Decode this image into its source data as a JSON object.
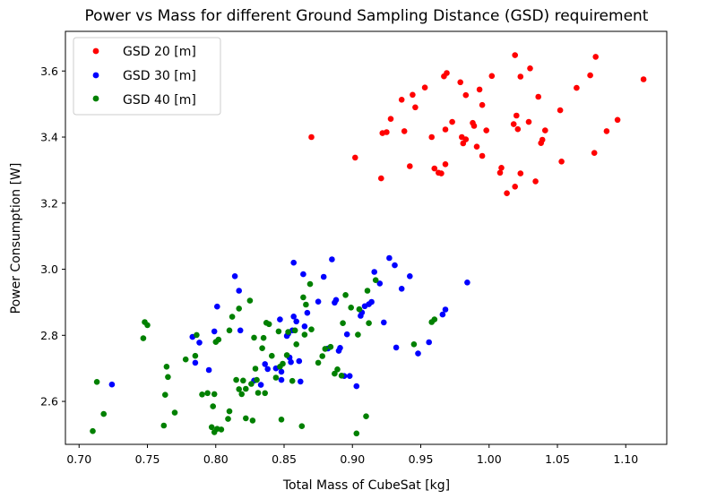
{
  "chart_data": {
    "type": "scatter",
    "title": "Power vs Mass for different Ground Sampling Distance (GSD) requirement",
    "xlabel": "Total Mass of CubeSat [kg]",
    "ylabel": "Power Consumption [W]",
    "xlim": [
      0.69,
      1.13
    ],
    "ylim": [
      2.47,
      3.72
    ],
    "xticks": [
      "0.70",
      "0.75",
      "0.80",
      "0.85",
      "0.90",
      "0.95",
      "1.00",
      "1.05",
      "1.10"
    ],
    "yticks": [
      "2.6",
      "2.8",
      "3.0",
      "3.2",
      "3.4",
      "3.6"
    ],
    "grid": false,
    "legend_position": "top-left",
    "series": [
      {
        "name": "GSD 20 [m]",
        "color": "#ff0000",
        "points": [
          [
            0.87,
            3.4
          ],
          [
            0.902,
            3.338
          ],
          [
            0.921,
            3.275
          ],
          [
            0.922,
            3.412
          ],
          [
            0.925,
            3.415
          ],
          [
            0.928,
            3.455
          ],
          [
            0.936,
            3.513
          ],
          [
            0.938,
            3.418
          ],
          [
            0.942,
            3.312
          ],
          [
            0.944,
            3.528
          ],
          [
            0.946,
            3.49
          ],
          [
            0.953,
            3.55
          ],
          [
            0.958,
            3.4
          ],
          [
            0.96,
            3.305
          ],
          [
            0.963,
            3.292
          ],
          [
            0.965,
            3.29
          ],
          [
            0.967,
            3.584
          ],
          [
            0.968,
            3.423
          ],
          [
            0.968,
            3.318
          ],
          [
            0.969,
            3.594
          ],
          [
            0.973,
            3.446
          ],
          [
            0.979,
            3.566
          ],
          [
            0.98,
            3.4
          ],
          [
            0.981,
            3.381
          ],
          [
            0.983,
            3.527
          ],
          [
            0.983,
            3.393
          ],
          [
            0.988,
            3.443
          ],
          [
            0.989,
            3.434
          ],
          [
            0.991,
            3.371
          ],
          [
            0.993,
            3.544
          ],
          [
            0.995,
            3.343
          ],
          [
            0.995,
            3.497
          ],
          [
            0.998,
            3.42
          ],
          [
            1.002,
            3.585
          ],
          [
            1.008,
            3.292
          ],
          [
            1.009,
            3.307
          ],
          [
            1.013,
            3.23
          ],
          [
            1.018,
            3.439
          ],
          [
            1.019,
            3.648
          ],
          [
            1.019,
            3.25
          ],
          [
            1.02,
            3.465
          ],
          [
            1.021,
            3.424
          ],
          [
            1.023,
            3.583
          ],
          [
            1.023,
            3.29
          ],
          [
            1.029,
            3.446
          ],
          [
            1.03,
            3.608
          ],
          [
            1.034,
            3.266
          ],
          [
            1.036,
            3.522
          ],
          [
            1.038,
            3.382
          ],
          [
            1.039,
            3.392
          ],
          [
            1.041,
            3.42
          ],
          [
            1.052,
            3.481
          ],
          [
            1.053,
            3.326
          ],
          [
            1.064,
            3.549
          ],
          [
            1.074,
            3.587
          ],
          [
            1.077,
            3.352
          ],
          [
            1.078,
            3.643
          ],
          [
            1.086,
            3.418
          ],
          [
            1.094,
            3.452
          ],
          [
            1.113,
            3.575
          ]
        ]
      },
      {
        "name": "GSD 30 [m]",
        "color": "#0000ff",
        "points": [
          [
            0.724,
            2.651
          ],
          [
            0.783,
            2.795
          ],
          [
            0.785,
            2.717
          ],
          [
            0.788,
            2.778
          ],
          [
            0.795,
            2.695
          ],
          [
            0.799,
            2.812
          ],
          [
            0.801,
            2.887
          ],
          [
            0.814,
            2.979
          ],
          [
            0.817,
            2.935
          ],
          [
            0.818,
            2.815
          ],
          [
            0.828,
            2.663
          ],
          [
            0.833,
            2.65
          ],
          [
            0.836,
            2.713
          ],
          [
            0.838,
            2.698
          ],
          [
            0.844,
            2.7
          ],
          [
            0.847,
            2.848
          ],
          [
            0.848,
            2.665
          ],
          [
            0.848,
            2.69
          ],
          [
            0.852,
            2.798
          ],
          [
            0.853,
            2.805
          ],
          [
            0.854,
            2.733
          ],
          [
            0.855,
            2.719
          ],
          [
            0.856,
            2.815
          ],
          [
            0.857,
            3.02
          ],
          [
            0.857,
            2.857
          ],
          [
            0.859,
            2.842
          ],
          [
            0.861,
            2.722
          ],
          [
            0.862,
            2.66
          ],
          [
            0.864,
            2.985
          ],
          [
            0.865,
            2.827
          ],
          [
            0.867,
            2.868
          ],
          [
            0.875,
            2.902
          ],
          [
            0.879,
            2.977
          ],
          [
            0.882,
            2.76
          ],
          [
            0.885,
            3.03
          ],
          [
            0.887,
            2.899
          ],
          [
            0.888,
            2.907
          ],
          [
            0.89,
            2.753
          ],
          [
            0.891,
            2.762
          ],
          [
            0.894,
            2.677
          ],
          [
            0.896,
            2.803
          ],
          [
            0.898,
            2.677
          ],
          [
            0.903,
            2.646
          ],
          [
            0.906,
            2.859
          ],
          [
            0.907,
            2.869
          ],
          [
            0.909,
            2.888
          ],
          [
            0.912,
            2.894
          ],
          [
            0.914,
            2.901
          ],
          [
            0.916,
            2.992
          ],
          [
            0.92,
            2.957
          ],
          [
            0.923,
            2.839
          ],
          [
            0.927,
            3.034
          ],
          [
            0.931,
            3.012
          ],
          [
            0.932,
            2.763
          ],
          [
            0.936,
            2.941
          ],
          [
            0.942,
            2.979
          ],
          [
            0.948,
            2.745
          ],
          [
            0.956,
            2.779
          ],
          [
            0.966,
            2.863
          ],
          [
            0.968,
            2.878
          ],
          [
            0.984,
            2.96
          ]
        ]
      },
      {
        "name": "GSD 40 [m]",
        "color": "#008000",
        "points": [
          [
            0.71,
            2.51
          ],
          [
            0.713,
            2.659
          ],
          [
            0.718,
            2.562
          ],
          [
            0.747,
            2.791
          ],
          [
            0.748,
            2.84
          ],
          [
            0.75,
            2.831
          ],
          [
            0.762,
            2.527
          ],
          [
            0.763,
            2.62
          ],
          [
            0.764,
            2.705
          ],
          [
            0.765,
            2.674
          ],
          [
            0.77,
            2.566
          ],
          [
            0.778,
            2.727
          ],
          [
            0.785,
            2.738
          ],
          [
            0.786,
            2.801
          ],
          [
            0.79,
            2.621
          ],
          [
            0.794,
            2.625
          ],
          [
            0.797,
            2.522
          ],
          [
            0.798,
            2.585
          ],
          [
            0.799,
            2.507
          ],
          [
            0.799,
            2.622
          ],
          [
            0.8,
            2.78
          ],
          [
            0.801,
            2.517
          ],
          [
            0.802,
            2.787
          ],
          [
            0.804,
            2.515
          ],
          [
            0.809,
            2.547
          ],
          [
            0.81,
            2.57
          ],
          [
            0.81,
            2.815
          ],
          [
            0.812,
            2.856
          ],
          [
            0.815,
            2.665
          ],
          [
            0.817,
            2.881
          ],
          [
            0.817,
            2.637
          ],
          [
            0.819,
            2.622
          ],
          [
            0.82,
            2.663
          ],
          [
            0.822,
            2.638
          ],
          [
            0.822,
            2.549
          ],
          [
            0.825,
            2.905
          ],
          [
            0.826,
            2.653
          ],
          [
            0.827,
            2.542
          ],
          [
            0.828,
            2.793
          ],
          [
            0.829,
            2.699
          ],
          [
            0.83,
            2.665
          ],
          [
            0.831,
            2.626
          ],
          [
            0.834,
            2.761
          ],
          [
            0.835,
            2.792
          ],
          [
            0.836,
            2.625
          ],
          [
            0.837,
            2.838
          ],
          [
            0.839,
            2.834
          ],
          [
            0.841,
            2.738
          ],
          [
            0.844,
            2.672
          ],
          [
            0.846,
            2.812
          ],
          [
            0.847,
            2.705
          ],
          [
            0.848,
            2.545
          ],
          [
            0.849,
            2.714
          ],
          [
            0.852,
            2.74
          ],
          [
            0.853,
            2.81
          ],
          [
            0.856,
            2.662
          ],
          [
            0.858,
            2.815
          ],
          [
            0.859,
            2.773
          ],
          [
            0.863,
            2.525
          ],
          [
            0.864,
            2.915
          ],
          [
            0.865,
            2.802
          ],
          [
            0.866,
            2.893
          ],
          [
            0.869,
            2.955
          ],
          [
            0.87,
            2.818
          ],
          [
            0.875,
            2.717
          ],
          [
            0.878,
            2.737
          ],
          [
            0.88,
            2.759
          ],
          [
            0.884,
            2.765
          ],
          [
            0.887,
            2.684
          ],
          [
            0.889,
            2.697
          ],
          [
            0.892,
            2.678
          ],
          [
            0.893,
            2.837
          ],
          [
            0.895,
            2.922
          ],
          [
            0.899,
            2.884
          ],
          [
            0.903,
            2.503
          ],
          [
            0.904,
            2.802
          ],
          [
            0.905,
            2.879
          ],
          [
            0.91,
            2.555
          ],
          [
            0.911,
            2.935
          ],
          [
            0.912,
            2.837
          ],
          [
            0.917,
            2.967
          ],
          [
            0.945,
            2.773
          ],
          [
            0.958,
            2.84
          ],
          [
            0.96,
            2.848
          ]
        ]
      }
    ]
  }
}
